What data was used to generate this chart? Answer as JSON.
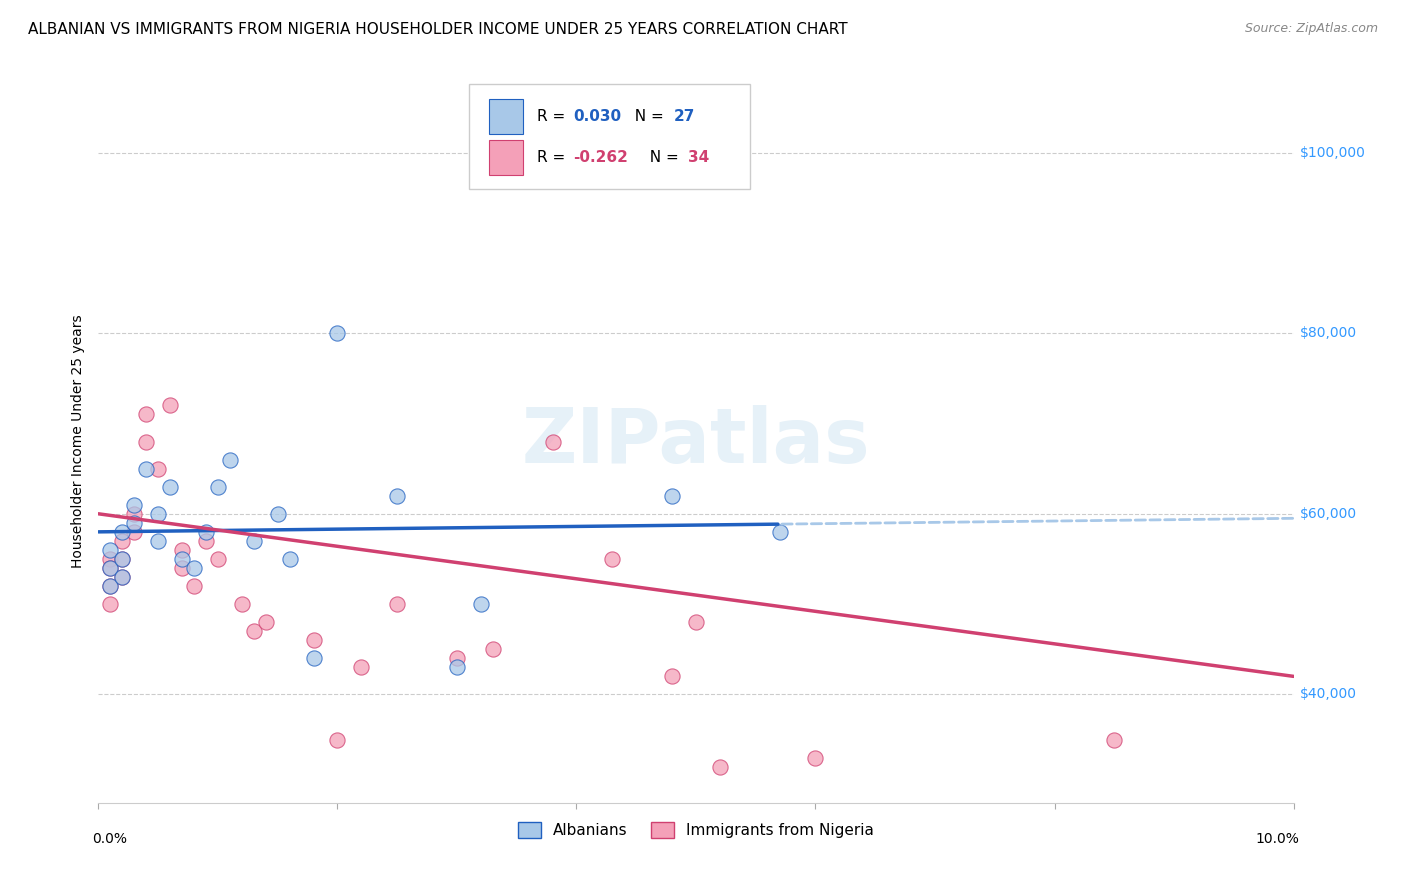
{
  "title": "ALBANIAN VS IMMIGRANTS FROM NIGERIA HOUSEHOLDER INCOME UNDER 25 YEARS CORRELATION CHART",
  "source": "Source: ZipAtlas.com",
  "ylabel": "Householder Income Under 25 years",
  "ytick_labels": [
    "$40,000",
    "$60,000",
    "$80,000",
    "$100,000"
  ],
  "ytick_values": [
    40000,
    60000,
    80000,
    100000
  ],
  "legend_R1": "0.030",
  "legend_N1": "27",
  "legend_R2": "-0.262",
  "legend_N2": "34",
  "xlim": [
    0.0,
    0.1
  ],
  "ylim": [
    28000,
    108000
  ],
  "blue_color": "#a8c8e8",
  "pink_color": "#f4a0b8",
  "line_blue": "#2060c0",
  "line_pink": "#d04070",
  "albanians_x": [
    0.001,
    0.001,
    0.001,
    0.002,
    0.002,
    0.002,
    0.003,
    0.003,
    0.004,
    0.005,
    0.005,
    0.006,
    0.007,
    0.008,
    0.009,
    0.01,
    0.011,
    0.013,
    0.015,
    0.016,
    0.018,
    0.02,
    0.025,
    0.03,
    0.032,
    0.048,
    0.057
  ],
  "albanians_y": [
    56000,
    54000,
    52000,
    58000,
    55000,
    53000,
    61000,
    59000,
    65000,
    60000,
    57000,
    63000,
    55000,
    54000,
    58000,
    63000,
    66000,
    57000,
    60000,
    55000,
    44000,
    80000,
    62000,
    43000,
    50000,
    62000,
    58000
  ],
  "nigeria_x": [
    0.001,
    0.001,
    0.001,
    0.001,
    0.002,
    0.002,
    0.002,
    0.003,
    0.003,
    0.004,
    0.004,
    0.005,
    0.006,
    0.007,
    0.007,
    0.008,
    0.009,
    0.01,
    0.012,
    0.013,
    0.014,
    0.018,
    0.02,
    0.022,
    0.025,
    0.03,
    0.033,
    0.038,
    0.043,
    0.048,
    0.05,
    0.052,
    0.06,
    0.085
  ],
  "nigeria_y": [
    55000,
    54000,
    52000,
    50000,
    57000,
    55000,
    53000,
    60000,
    58000,
    71000,
    68000,
    65000,
    72000,
    56000,
    54000,
    52000,
    57000,
    55000,
    50000,
    47000,
    48000,
    46000,
    35000,
    43000,
    50000,
    44000,
    45000,
    68000,
    55000,
    42000,
    48000,
    32000,
    33000,
    35000
  ],
  "watermark": "ZIPatlas",
  "title_fontsize": 11,
  "source_fontsize": 9,
  "axis_label_fontsize": 10,
  "legend_fontsize": 11,
  "scatter_size": 120
}
